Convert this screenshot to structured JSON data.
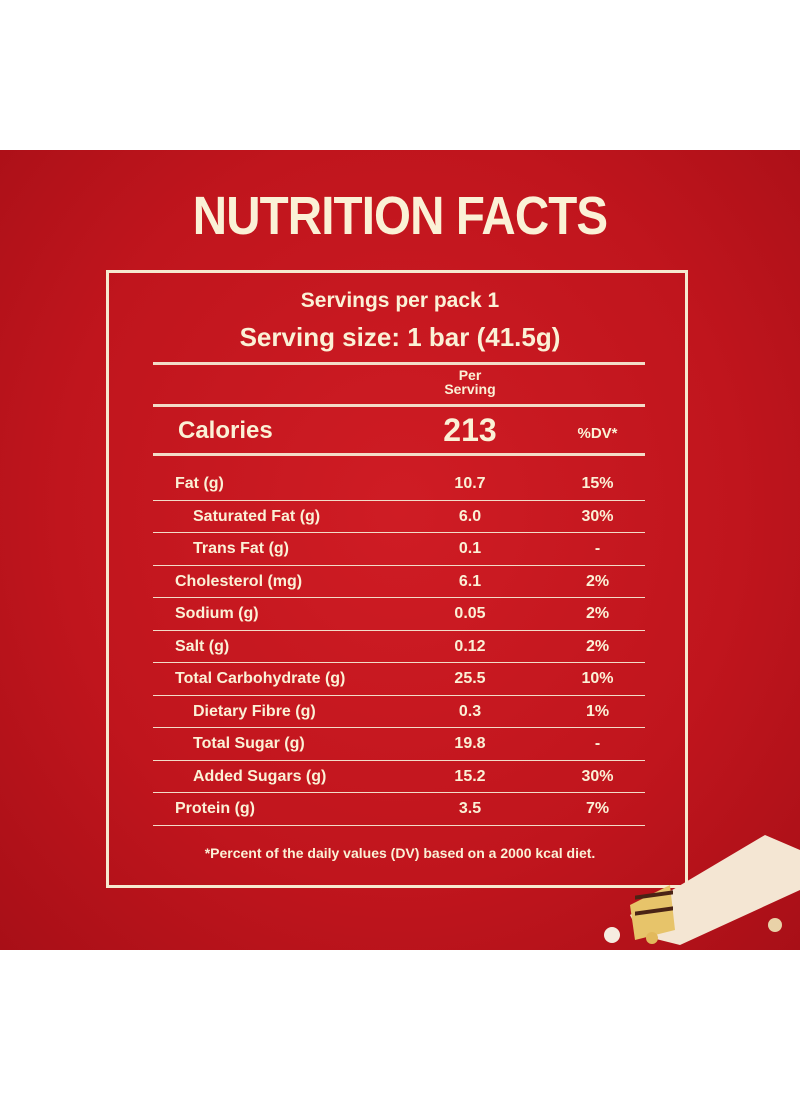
{
  "title": "NUTRITION FACTS",
  "servings_per_pack": "Servings per pack 1",
  "serving_size": "Serving size: 1 bar (41.5g)",
  "column_header": {
    "per_serving_1": "Per",
    "per_serving_2": "Serving"
  },
  "calories": {
    "label": "Calories",
    "value": "213",
    "dv_header": "%DV*"
  },
  "nutrients": [
    {
      "name": "Fat (g)",
      "value": "10.7",
      "dv": "15%",
      "indent": false
    },
    {
      "name": "Saturated Fat (g)",
      "value": "6.0",
      "dv": "30%",
      "indent": true
    },
    {
      "name": "Trans Fat (g)",
      "value": "0.1",
      "dv": "-",
      "indent": true
    },
    {
      "name": "Cholesterol (mg)",
      "value": "6.1",
      "dv": "2%",
      "indent": false
    },
    {
      "name": "Sodium (g)",
      "value": "0.05",
      "dv": "2%",
      "indent": false
    },
    {
      "name": "Salt (g)",
      "value": "0.12",
      "dv": "2%",
      "indent": false
    },
    {
      "name": "Total Carbohydrate (g)",
      "value": "25.5",
      "dv": "10%",
      "indent": false
    },
    {
      "name": "Dietary Fibre (g)",
      "value": "0.3",
      "dv": "1%",
      "indent": true
    },
    {
      "name": "Total Sugar (g)",
      "value": "19.8",
      "dv": "-",
      "indent": true
    },
    {
      "name": "Added Sugars (g)",
      "value": "15.2",
      "dv": "30%",
      "indent": true
    },
    {
      "name": "Protein (g)",
      "value": "3.5",
      "dv": "7%",
      "indent": false
    }
  ],
  "footnote": "*Percent of the daily values (DV) based on a 2000 kcal diet.",
  "colors": {
    "background": "#c0151d",
    "text": "#fbf1d6"
  }
}
